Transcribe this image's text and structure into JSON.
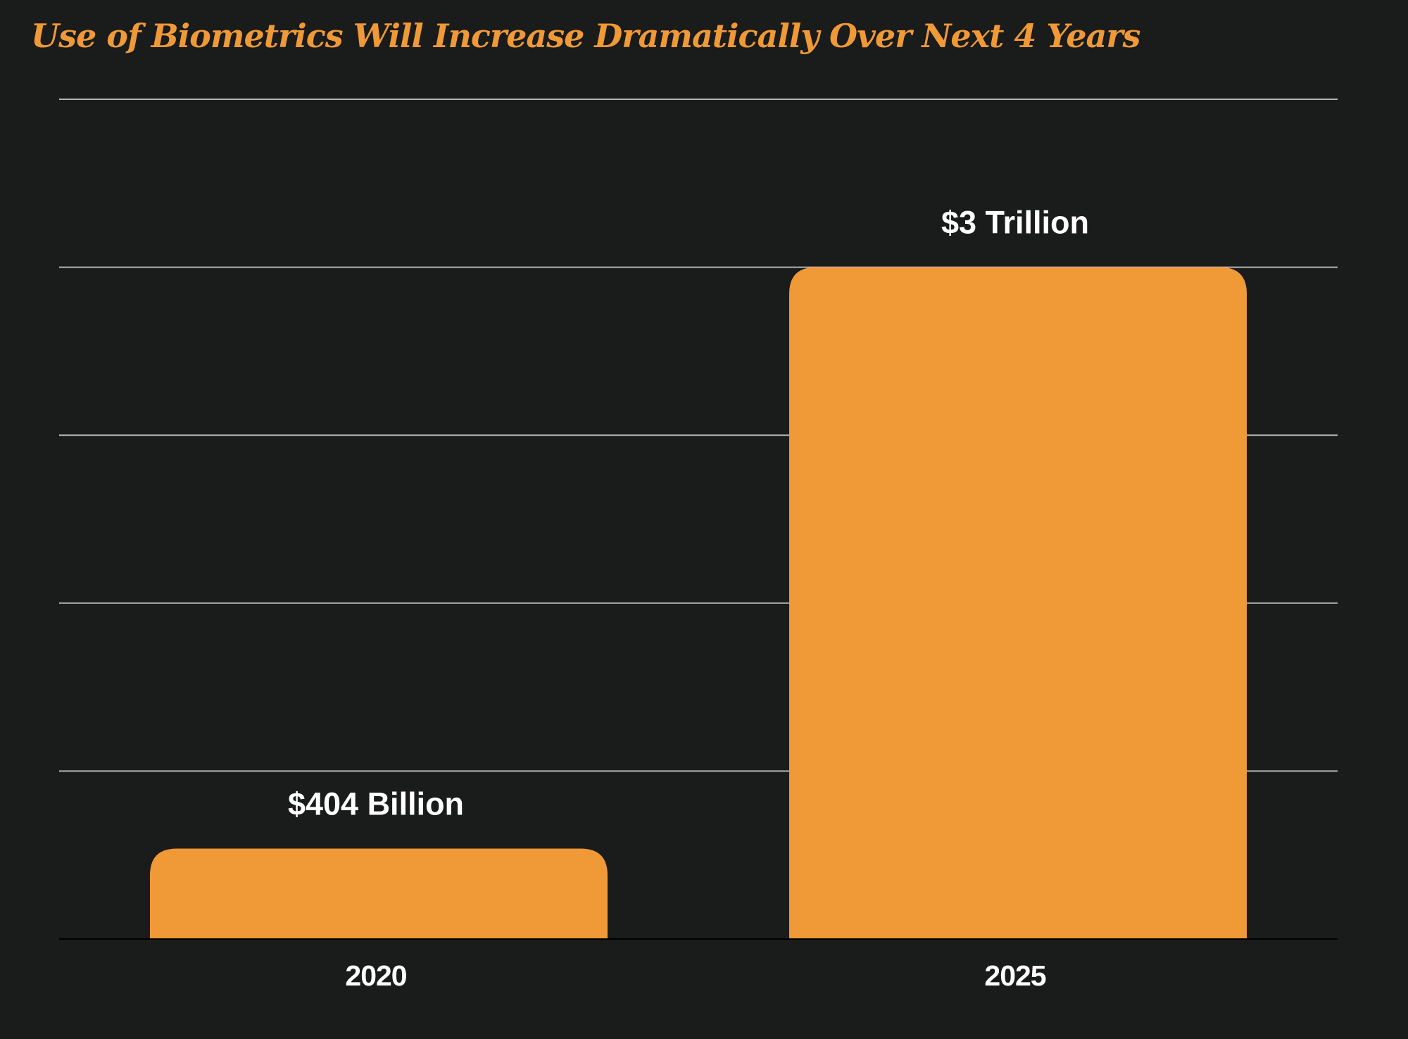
{
  "chart_data": {
    "type": "bar",
    "title": "Use of Biometrics Will Increase Dramatically Over Next 4 Years",
    "xlabel": "",
    "ylabel": "",
    "categories": [
      "2020",
      "2025"
    ],
    "values": [
      404,
      3000
    ],
    "units": "billion USD",
    "data_labels": [
      "$404 Billion",
      "$3 Trillion"
    ],
    "ylim": [
      0,
      3750
    ],
    "grid": true,
    "legend": "none",
    "colors": {
      "background": "#1a1b1b",
      "bar": "#ef9937",
      "title": "#ef9937",
      "gridline": "#b5b5b5",
      "baseline": "#000000",
      "text": "#ffffff"
    }
  }
}
